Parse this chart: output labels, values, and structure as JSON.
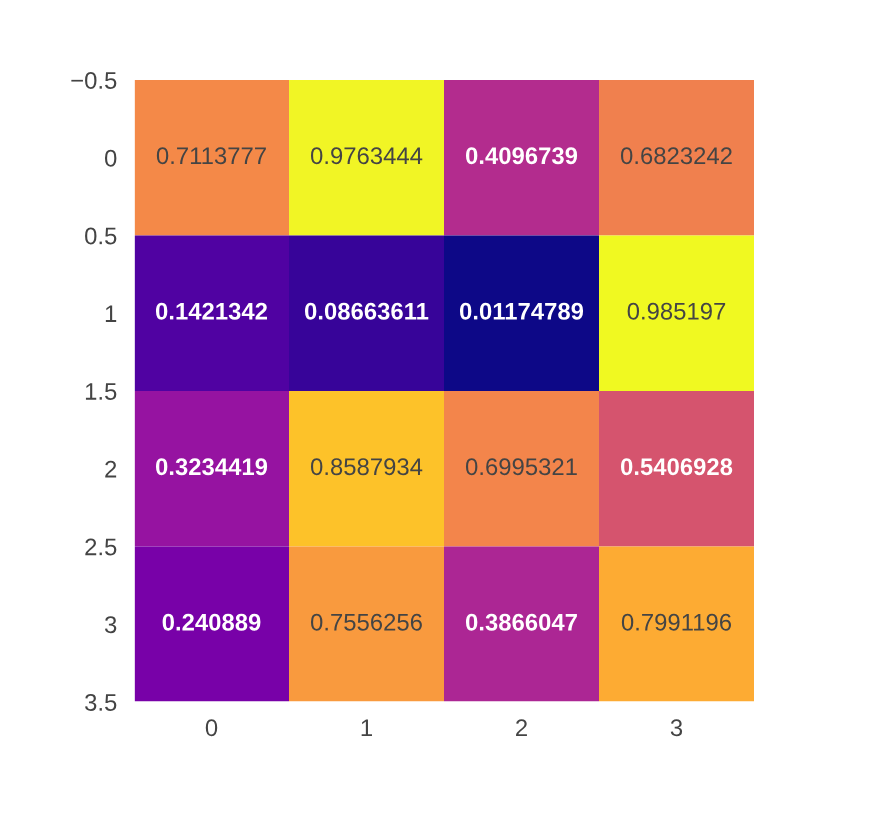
{
  "chart_data": {
    "type": "heatmap",
    "x": [
      0,
      1,
      2,
      3
    ],
    "cells": [
      [
        0.7113777,
        0.9763444,
        0.4096739,
        0.6823242
      ],
      [
        0.1421342,
        0.08663611,
        0.01174789,
        0.985197
      ],
      [
        0.3234419,
        0.8587934,
        0.6995321,
        0.5406928
      ],
      [
        0.240889,
        0.7556256,
        0.3866047,
        0.7991196
      ]
    ],
    "data_labels": true,
    "xlim": [
      -0.5,
      3.5
    ],
    "xticks": [
      0,
      1,
      2,
      3
    ],
    "ylim": [
      3.5,
      -0.5
    ],
    "yticks": [
      {
        "value": -0.5,
        "label": "−0.5"
      },
      0,
      0.5,
      1,
      1.5,
      2,
      2.5,
      3,
      3.5
    ]
  }
}
